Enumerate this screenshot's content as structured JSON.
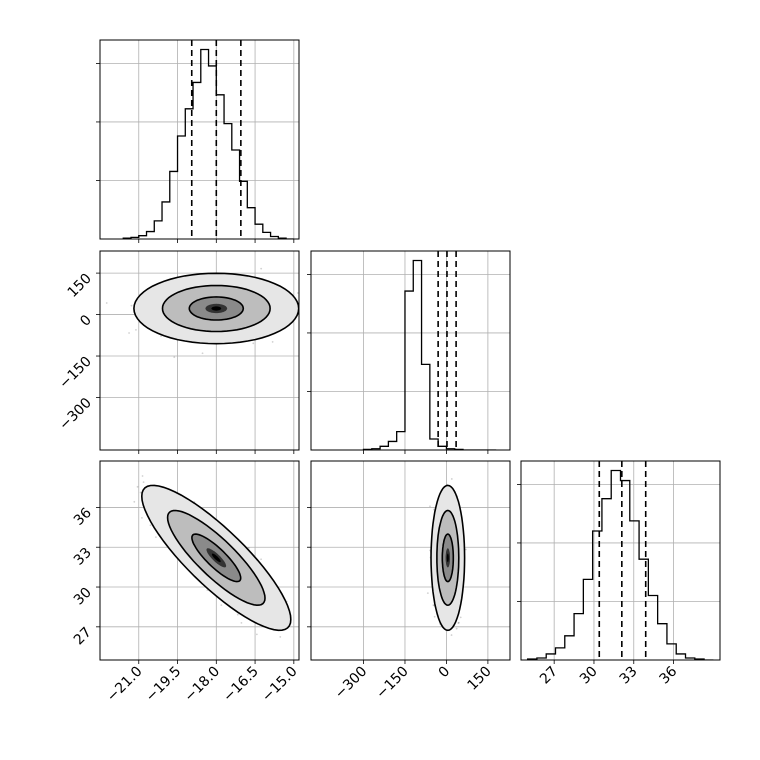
{
  "chart_data": {
    "type": "corner",
    "title": "",
    "parameters": [
      "",
      "",
      ""
    ],
    "ranges": [
      [
        -22.5,
        -14.8
      ],
      [
        -490,
        230
      ],
      [
        24.5,
        39.5
      ]
    ],
    "ticks": [
      [
        -21.0,
        -19.5,
        -18.0,
        -16.5,
        -15.0
      ],
      [
        -300,
        -150,
        0,
        150
      ],
      [
        27,
        30,
        33,
        36
      ]
    ],
    "tick_labels": [
      [
        "−21.0",
        "−19.5",
        "−18.0",
        "−16.5",
        "−15.0"
      ],
      [
        "−300",
        "−150",
        "0",
        "150"
      ],
      [
        "27",
        "30",
        "33",
        "36"
      ]
    ],
    "quantiles": [
      [
        -18.95,
        -18.0,
        -17.05
      ],
      [
        -30,
        2,
        35
      ],
      [
        30.4,
        32.1,
        33.9
      ]
    ],
    "histograms": [
      {
        "param": 0,
        "edges": [
          -21.6,
          -21.3,
          -21.0,
          -20.7,
          -20.4,
          -20.1,
          -19.8,
          -19.5,
          -19.2,
          -18.9,
          -18.6,
          -18.3,
          -18.0,
          -17.7,
          -17.4,
          -17.1,
          -16.8,
          -16.5,
          -16.2,
          -15.9,
          -15.6,
          -15.3,
          -15.0
        ],
        "counts": [
          1,
          2,
          4,
          9,
          22,
          45,
          82,
          125,
          158,
          190,
          230,
          210,
          175,
          140,
          108,
          70,
          38,
          18,
          8,
          3,
          1,
          0
        ]
      },
      {
        "param": 1,
        "edges": [
          -300,
          -270,
          -240,
          -210,
          -180,
          -150,
          -120,
          -90,
          -60,
          -30,
          0,
          30,
          60,
          90,
          120,
          150,
          180
        ],
        "counts": [
          1,
          2,
          6,
          14,
          30,
          260,
          310,
          140,
          18,
          6,
          2,
          1,
          0,
          0,
          0,
          0
        ]
      },
      {
        "param": 2,
        "edges": [
          25.0,
          25.7,
          26.4,
          27.1,
          27.8,
          28.5,
          29.2,
          29.9,
          30.6,
          31.3,
          32.0,
          32.7,
          33.4,
          34.1,
          34.8,
          35.5,
          36.2,
          36.9,
          37.6,
          38.3,
          39.0
        ],
        "counts": [
          1,
          2,
          6,
          12,
          24,
          46,
          80,
          128,
          160,
          188,
          178,
          138,
          100,
          64,
          36,
          16,
          6,
          2,
          1,
          0
        ]
      }
    ],
    "pairs": [
      {
        "x": 0,
        "y": 1,
        "center": [
          -18.0,
          22
        ],
        "sigma": [
          1.05,
          42
        ],
        "rho": 0.0
      },
      {
        "x": 0,
        "y": 2,
        "center": [
          -18.0,
          32.2
        ],
        "sigma": [
          0.95,
          1.8
        ],
        "rho": -0.85
      },
      {
        "x": 1,
        "y": 2,
        "center": [
          5,
          32.2
        ],
        "sigma": [
          20,
          1.8
        ],
        "rho": 0.0
      }
    ],
    "levels": [
      0.39,
      0.86,
      0.99
    ],
    "grid": true,
    "legend": ""
  }
}
